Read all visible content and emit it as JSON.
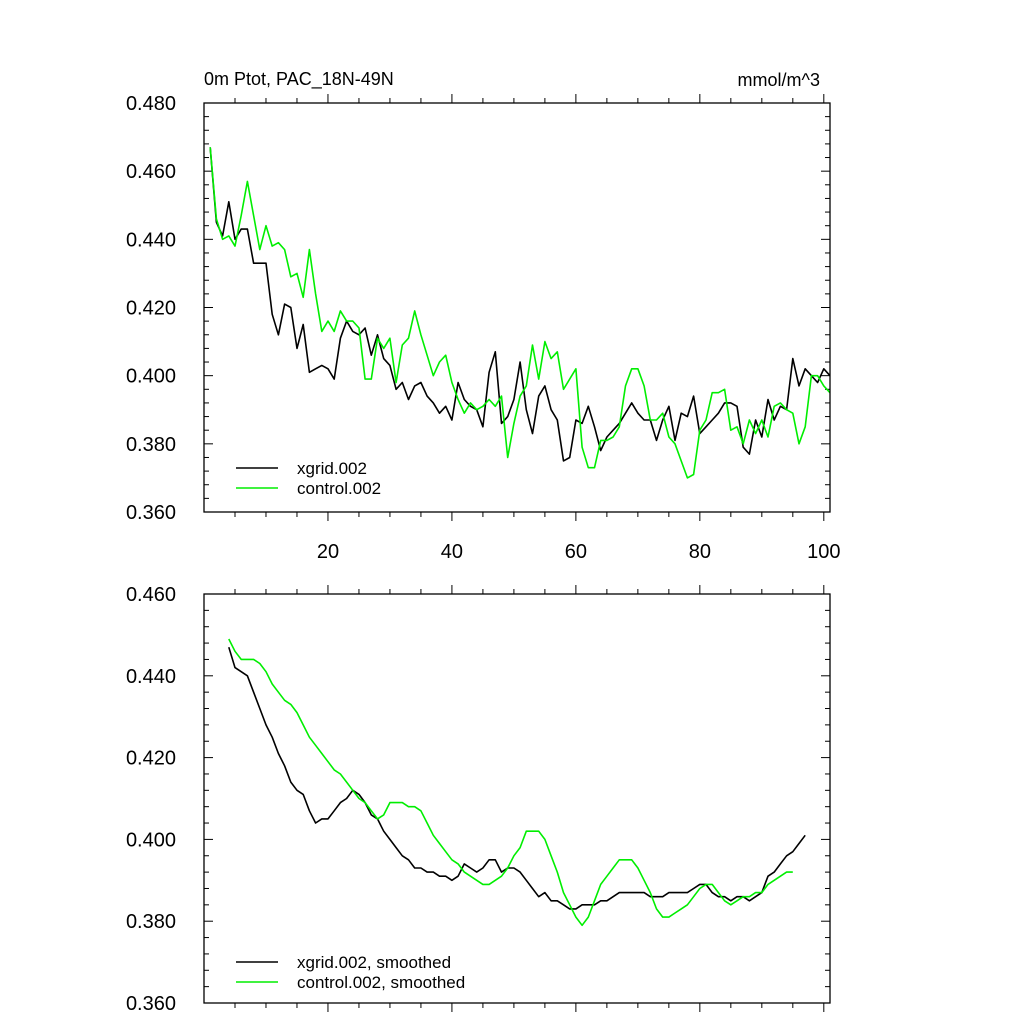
{
  "chart_data": [
    {
      "type": "line",
      "title": "0m Ptot, PAC_18N-49N",
      "units": "mmol/m^3",
      "xlabel": "",
      "ylabel": "",
      "xlim": [
        0,
        101
      ],
      "ylim": [
        0.36,
        0.48
      ],
      "xticks": [
        20,
        40,
        60,
        80,
        100
      ],
      "yticks": [
        0.36,
        0.38,
        0.4,
        0.42,
        0.44,
        0.46,
        0.48
      ],
      "ytick_labels": [
        "0.360",
        "0.380",
        "0.400",
        "0.420",
        "0.440",
        "0.460",
        "0.480"
      ],
      "xtick_labels": [
        "20",
        "40",
        "60",
        "80",
        "100"
      ],
      "legend_position": "bottom-left",
      "series": [
        {
          "name": "xgrid.002",
          "color": "#000000",
          "x_start": 1,
          "values": [
            0.467,
            0.445,
            0.441,
            0.451,
            0.44,
            0.443,
            0.443,
            0.433,
            0.433,
            0.433,
            0.418,
            0.412,
            0.421,
            0.42,
            0.408,
            0.415,
            0.401,
            0.402,
            0.403,
            0.402,
            0.399,
            0.411,
            0.416,
            0.413,
            0.412,
            0.414,
            0.406,
            0.412,
            0.405,
            0.403,
            0.396,
            0.398,
            0.393,
            0.397,
            0.398,
            0.394,
            0.392,
            0.389,
            0.391,
            0.387,
            0.398,
            0.393,
            0.391,
            0.39,
            0.385,
            0.401,
            0.407,
            0.386,
            0.388,
            0.393,
            0.404,
            0.39,
            0.383,
            0.394,
            0.397,
            0.39,
            0.387,
            0.375,
            0.376,
            0.387,
            0.386,
            0.391,
            0.385,
            0.378,
            0.382,
            0.384,
            0.386,
            0.389,
            0.392,
            0.389,
            0.387,
            0.387,
            0.381,
            0.387,
            0.391,
            0.381,
            0.389,
            0.388,
            0.394,
            0.383,
            0.385,
            0.387,
            0.389,
            0.392,
            0.392,
            0.391,
            0.379,
            0.377,
            0.387,
            0.382,
            0.393,
            0.387,
            0.391,
            0.39,
            0.405,
            0.397,
            0.402,
            0.4,
            0.398,
            0.402,
            0.4
          ]
        },
        {
          "name": "control.002",
          "color": "#00ee00",
          "x_start": 1,
          "values": [
            0.467,
            0.446,
            0.44,
            0.441,
            0.438,
            0.447,
            0.457,
            0.447,
            0.437,
            0.444,
            0.438,
            0.439,
            0.437,
            0.429,
            0.43,
            0.423,
            0.437,
            0.424,
            0.413,
            0.416,
            0.413,
            0.419,
            0.416,
            0.416,
            0.414,
            0.399,
            0.399,
            0.411,
            0.408,
            0.411,
            0.398,
            0.409,
            0.411,
            0.419,
            0.412,
            0.406,
            0.4,
            0.404,
            0.406,
            0.398,
            0.393,
            0.389,
            0.392,
            0.39,
            0.391,
            0.393,
            0.391,
            0.394,
            0.376,
            0.386,
            0.394,
            0.397,
            0.409,
            0.399,
            0.41,
            0.405,
            0.407,
            0.396,
            0.399,
            0.402,
            0.379,
            0.373,
            0.373,
            0.381,
            0.381,
            0.382,
            0.385,
            0.397,
            0.402,
            0.402,
            0.397,
            0.387,
            0.387,
            0.389,
            0.382,
            0.38,
            0.375,
            0.37,
            0.371,
            0.384,
            0.387,
            0.395,
            0.395,
            0.396,
            0.384,
            0.385,
            0.38,
            0.387,
            0.383,
            0.387,
            0.382,
            0.391,
            0.392,
            0.39,
            0.389,
            0.38,
            0.385,
            0.4,
            0.4,
            0.397,
            0.395
          ]
        }
      ]
    },
    {
      "type": "line",
      "title": "",
      "xlabel": "",
      "ylabel": "",
      "xlim": [
        0,
        101
      ],
      "ylim": [
        0.36,
        0.46
      ],
      "xticks": [
        20,
        40,
        60,
        80,
        100
      ],
      "yticks": [
        0.36,
        0.38,
        0.4,
        0.42,
        0.44,
        0.46
      ],
      "ytick_labels": [
        "0.360",
        "0.380",
        "0.400",
        "0.420",
        "0.440",
        "0.460"
      ],
      "legend_position": "bottom-left",
      "series": [
        {
          "name": "xgrid.002, smoothed",
          "color": "#000000",
          "x_start": 4,
          "values": [
            0.447,
            0.442,
            0.441,
            0.44,
            0.436,
            0.432,
            0.428,
            0.425,
            0.421,
            0.418,
            0.414,
            0.412,
            0.411,
            0.407,
            0.404,
            0.405,
            0.405,
            0.407,
            0.409,
            0.41,
            0.412,
            0.411,
            0.409,
            0.406,
            0.405,
            0.402,
            0.4,
            0.398,
            0.396,
            0.395,
            0.393,
            0.393,
            0.392,
            0.392,
            0.391,
            0.391,
            0.39,
            0.391,
            0.394,
            0.393,
            0.392,
            0.393,
            0.395,
            0.395,
            0.392,
            0.393,
            0.393,
            0.392,
            0.39,
            0.388,
            0.386,
            0.387,
            0.385,
            0.385,
            0.384,
            0.383,
            0.383,
            0.384,
            0.384,
            0.384,
            0.385,
            0.385,
            0.386,
            0.387,
            0.387,
            0.387,
            0.387,
            0.387,
            0.386,
            0.386,
            0.386,
            0.387,
            0.387,
            0.387,
            0.387,
            0.388,
            0.389,
            0.389,
            0.387,
            0.386,
            0.386,
            0.385,
            0.386,
            0.386,
            0.385,
            0.386,
            0.387,
            0.391,
            0.392,
            0.394,
            0.396,
            0.397,
            0.399,
            0.401
          ]
        },
        {
          "name": "control.002, smoothed",
          "color": "#00ee00",
          "x_start": 4,
          "values": [
            0.449,
            0.446,
            0.444,
            0.444,
            0.444,
            0.443,
            0.441,
            0.438,
            0.436,
            0.434,
            0.433,
            0.431,
            0.428,
            0.425,
            0.423,
            0.421,
            0.419,
            0.417,
            0.416,
            0.414,
            0.412,
            0.41,
            0.409,
            0.407,
            0.405,
            0.406,
            0.409,
            0.409,
            0.409,
            0.408,
            0.408,
            0.407,
            0.404,
            0.401,
            0.399,
            0.397,
            0.395,
            0.394,
            0.392,
            0.391,
            0.39,
            0.389,
            0.389,
            0.39,
            0.391,
            0.393,
            0.396,
            0.398,
            0.402,
            0.402,
            0.402,
            0.4,
            0.396,
            0.392,
            0.387,
            0.384,
            0.381,
            0.379,
            0.381,
            0.385,
            0.389,
            0.391,
            0.393,
            0.395,
            0.395,
            0.395,
            0.393,
            0.39,
            0.387,
            0.383,
            0.381,
            0.381,
            0.382,
            0.383,
            0.384,
            0.386,
            0.388,
            0.389,
            0.389,
            0.387,
            0.385,
            0.384,
            0.385,
            0.386,
            0.386,
            0.387,
            0.387,
            0.389,
            0.39,
            0.391,
            0.392,
            0.392
          ]
        }
      ]
    }
  ]
}
